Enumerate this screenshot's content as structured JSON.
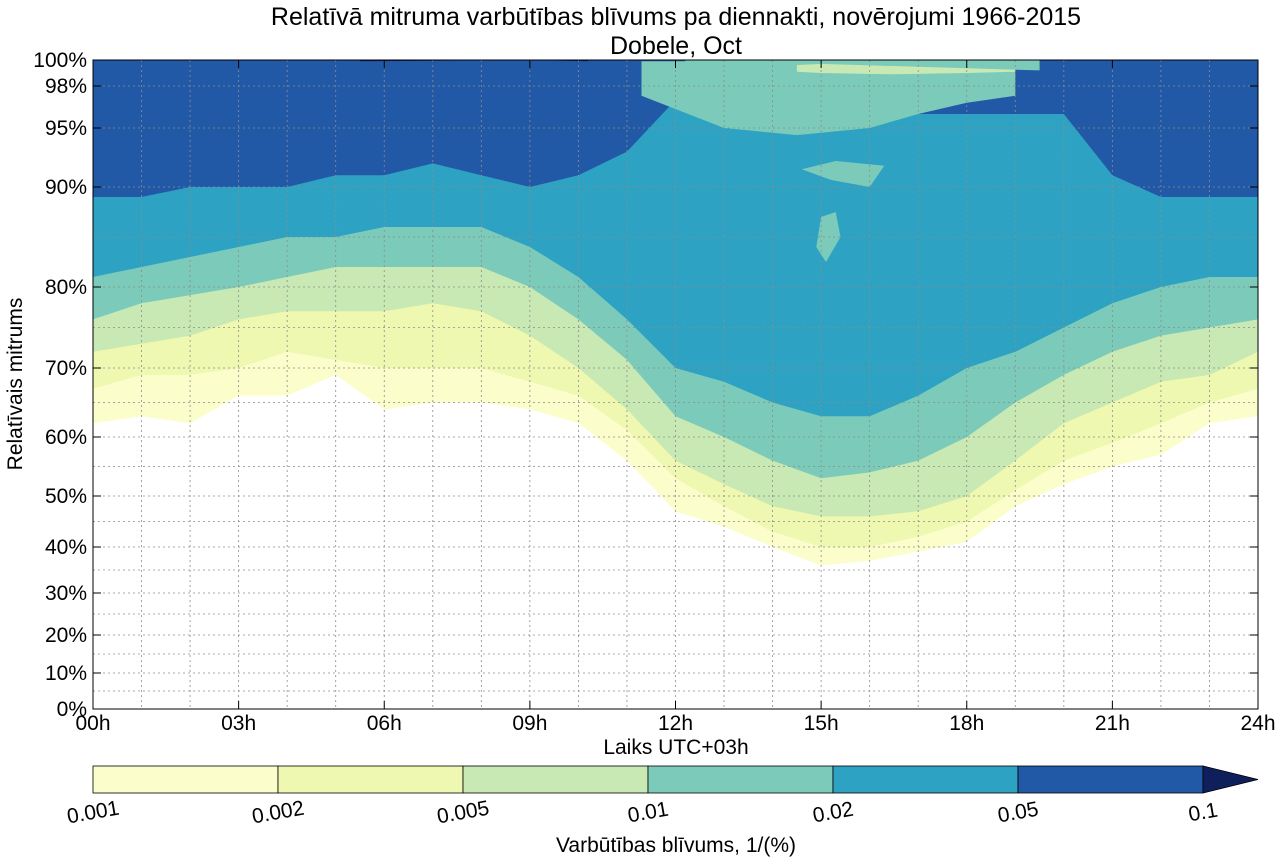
{
  "chart_data": {
    "type": "heatmap",
    "subtype": "filled-contour",
    "title": "Relatīvā mitruma varbūtības blīvums pa diennakti, novērojumi 1966-2015",
    "subtitle": "Dobele, Oct",
    "xlabel": "Laiks UTC+03h",
    "ylabel": "Relatīvais mitrums",
    "xlim": [
      0,
      24
    ],
    "x_ticks": [
      {
        "value": 0,
        "label": "00h"
      },
      {
        "value": 3,
        "label": "03h"
      },
      {
        "value": 6,
        "label": "06h"
      },
      {
        "value": 9,
        "label": "09h"
      },
      {
        "value": 12,
        "label": "12h"
      },
      {
        "value": 15,
        "label": "15h"
      },
      {
        "value": 18,
        "label": "18h"
      },
      {
        "value": 21,
        "label": "21h"
      },
      {
        "value": 24,
        "label": "24h"
      }
    ],
    "y_ticks": [
      {
        "value": 0,
        "label": "0%"
      },
      {
        "value": 10,
        "label": "10%"
      },
      {
        "value": 20,
        "label": "20%"
      },
      {
        "value": 30,
        "label": "30%"
      },
      {
        "value": 40,
        "label": "40%"
      },
      {
        "value": 50,
        "label": "50%"
      },
      {
        "value": 60,
        "label": "60%"
      },
      {
        "value": 70,
        "label": "70%"
      },
      {
        "value": 80,
        "label": "80%"
      },
      {
        "value": 90,
        "label": "90%"
      },
      {
        "value": 95,
        "label": "95%"
      },
      {
        "value": 98,
        "label": "98%"
      },
      {
        "value": 100,
        "label": "100%"
      }
    ],
    "y_minor_ticks": [
      5,
      15,
      25,
      35,
      45,
      55,
      65,
      75,
      85
    ],
    "grid": true,
    "colorbar": {
      "label": "Varbūtības blīvums, 1/(%)",
      "levels": [
        0.001,
        0.002,
        0.005,
        0.01,
        0.02,
        0.05,
        0.1
      ],
      "level_labels": [
        "0.001",
        "0.002",
        "0.005",
        "0.01",
        "0.02",
        "0.05",
        "0.1"
      ],
      "colors": [
        "#fbfdcb",
        "#eef8b0",
        "#c8e9b3",
        "#7ccbba",
        "#2ea2c2",
        "#2259a6",
        "#0f1f5c"
      ],
      "extend": "max"
    },
    "hours": [
      0,
      1,
      2,
      3,
      4,
      5,
      6,
      7,
      8,
      9,
      10,
      11,
      12,
      13,
      14,
      15,
      16,
      17,
      18,
      19,
      20,
      21,
      22,
      23,
      24
    ],
    "boundaries": [
      {
        "level": 0.001,
        "rh": [
          62,
          63,
          62,
          66,
          66,
          69,
          64,
          65,
          65,
          64,
          62,
          56,
          47,
          44,
          40,
          36,
          37,
          39,
          41,
          48,
          52,
          55,
          57,
          62,
          63
        ]
      },
      {
        "level": 0.002,
        "rh": [
          67,
          69,
          69,
          70,
          72,
          71,
          70,
          70,
          70,
          68,
          66,
          61,
          53,
          48,
          43,
          40,
          40,
          42,
          45,
          51,
          56,
          59,
          62,
          65,
          67
        ]
      },
      {
        "level": 0.005,
        "rh": [
          72,
          73,
          74,
          76,
          77,
          77,
          77,
          78,
          77,
          74,
          70,
          64,
          56,
          52,
          48,
          46,
          46,
          47,
          50,
          56,
          62,
          65,
          68,
          69,
          72
        ]
      },
      {
        "level": 0.01,
        "rh": [
          76,
          78,
          79,
          80,
          81,
          82,
          82,
          82,
          82,
          80,
          76,
          71,
          63,
          60,
          56,
          53,
          54,
          56,
          60,
          65,
          69,
          72,
          74,
          75,
          76
        ]
      },
      {
        "level": 0.02,
        "rh": [
          81,
          82,
          83,
          84,
          85,
          85,
          86,
          86,
          86,
          84,
          81,
          76,
          70,
          68,
          65,
          63,
          63,
          66,
          70,
          72,
          75,
          78,
          80,
          81,
          81
        ]
      },
      {
        "level": 0.05,
        "rh": [
          89,
          89,
          90,
          90,
          90,
          91,
          91,
          92,
          91,
          90,
          91,
          93,
          97,
          98,
          98,
          98,
          97,
          96,
          96,
          96,
          96,
          91,
          89,
          89,
          89
        ]
      }
    ],
    "features": {
      "dark_band_0.05": {
        "hours": [
          0,
          0.5,
          3,
          6,
          7,
          9,
          11,
          12,
          15,
          18,
          21,
          24
        ],
        "rh": [
          99.1,
          99.2,
          99.3,
          99.5,
          99.6,
          99.8,
          99.9,
          99.9,
          99.9,
          99.9,
          99.8,
          99.7
        ]
      },
      "near_top_0.1": {
        "hours": [
          5.5,
          9,
          10.2
        ],
        "rh": [
          99.9,
          100,
          99.9
        ]
      },
      "top_light_0.01": {
        "hours": [
          12.2,
          15,
          19.5
        ],
        "rh": [
          99.2,
          99.7,
          99.2
        ]
      },
      "bulge_0.01": {
        "hours": [
          11.3,
          13,
          14.5,
          16,
          17,
          18,
          19
        ],
        "rh": [
          97.3,
          95.0,
          94.4,
          95.0,
          96.0,
          96.8,
          97.3
        ]
      },
      "top_cap_0.005": {
        "hours": [
          14.5,
          15,
          16.5,
          18,
          19
        ],
        "rh": [
          99.1,
          99.0,
          98.9,
          99.0,
          99.1
        ]
      },
      "island_0.01_a": {
        "hours": [
          14.6,
          15.3,
          16.3,
          16.0,
          15.2
        ],
        "rh": [
          91.5,
          92.2,
          91.8,
          90.0,
          90.6
        ]
      },
      "island_0.01_b": {
        "hours": [
          15.0,
          15.3,
          15.4,
          15.1,
          14.9
        ],
        "rh": [
          87.0,
          87.5,
          85.0,
          82.5,
          84.0
        ]
      }
    }
  }
}
